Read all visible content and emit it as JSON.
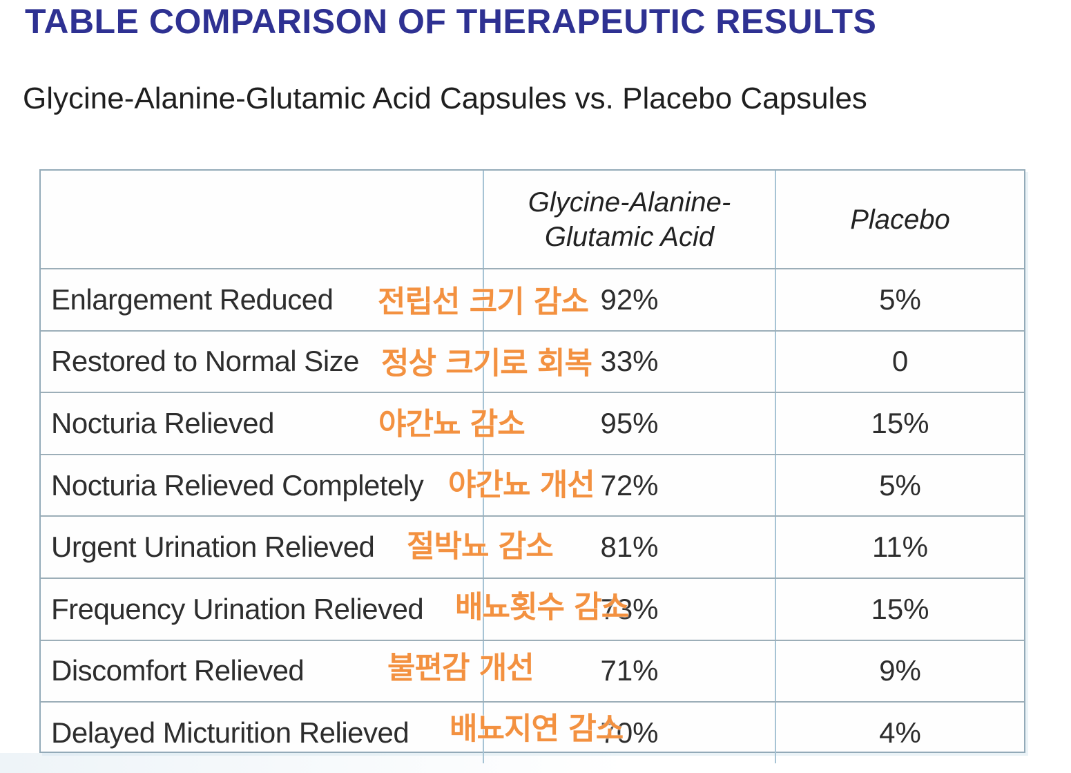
{
  "page": {
    "title": "TABLE COMPARISON OF THERAPEUTIC RESULTS",
    "subtitle": "Glycine-Alanine-Glutamic Acid Capsules vs. Placebo Capsules"
  },
  "colors": {
    "title_navy": "#2e3192",
    "annotation_orange": "#f39140",
    "grid_line": "#9caeb8",
    "body_text": "#2d2d2d"
  },
  "table": {
    "header": {
      "col1": "",
      "col2_line1": "Glycine-Alanine-",
      "col2_line2": "Glutamic Acid",
      "col3": "Placebo"
    },
    "rows": [
      {
        "label": "Enlargement Reduced",
        "korean": "전립선 크기 감소",
        "drug": "92%",
        "placebo": "5%"
      },
      {
        "label": "Restored to Normal Size",
        "korean": "정상 크기로 회복",
        "drug": "33%",
        "placebo": "0"
      },
      {
        "label": "Nocturia Relieved",
        "korean": "야간뇨 감소",
        "drug": "95%",
        "placebo": "15%"
      },
      {
        "label": "Nocturia Relieved Completely",
        "korean": "야간뇨 개선",
        "drug": "72%",
        "placebo": "5%"
      },
      {
        "label": "Urgent Urination Relieved",
        "korean": "절박뇨 감소",
        "drug": "81%",
        "placebo": "11%"
      },
      {
        "label": "Frequency Urination Relieved",
        "korean": "배뇨횟수 감소",
        "drug": "73%",
        "placebo": "15%"
      },
      {
        "label": "Discomfort Relieved",
        "korean": "불편감 개선",
        "drug": "71%",
        "placebo": "9%"
      },
      {
        "label": "Delayed Micturition Relieved",
        "korean": "배뇨지연 감소",
        "drug": "70%",
        "placebo": "4%"
      }
    ]
  }
}
